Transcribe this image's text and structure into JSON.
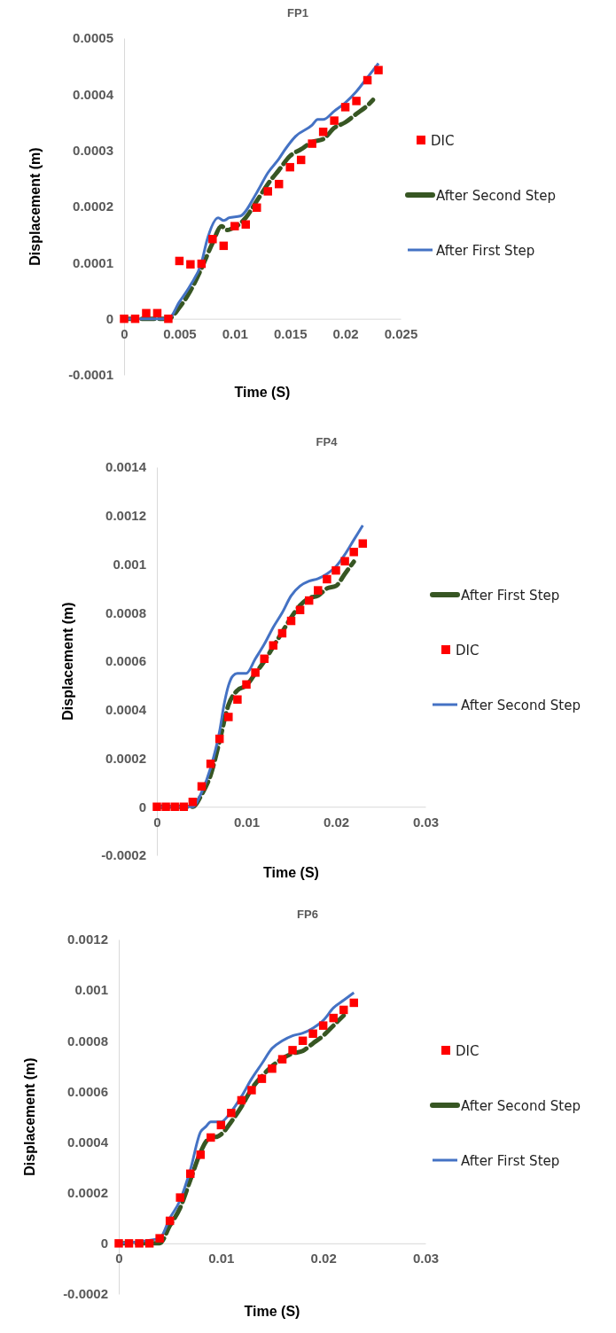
{
  "chart_data": [
    {
      "type": "line",
      "title": "FP1",
      "xlabel": "Time (S)",
      "ylabel": "Displacement (m)",
      "xlim": [
        0,
        0.025
      ],
      "xticks": [
        0,
        0.005,
        0.01,
        0.015,
        0.02,
        0.025
      ],
      "ylim": [
        -0.0001,
        0.0005
      ],
      "yticks": [
        -0.0001,
        0,
        0.0001,
        0.0002,
        0.0003,
        0.0004,
        0.0005
      ],
      "legend": "right",
      "grid": false,
      "series": [
        {
          "name": "DIC",
          "type": "scatter",
          "marker": "square",
          "color": "#ff0000",
          "x": [
            0,
            0.001,
            0.002,
            0.003,
            0.004,
            0.005,
            0.006,
            0.007,
            0.008,
            0.009,
            0.01,
            0.011,
            0.012,
            0.013,
            0.014,
            0.015,
            0.016,
            0.017,
            0.018,
            0.019,
            0.02,
            0.021,
            0.022,
            0.023
          ],
          "values": [
            0,
            0,
            1e-05,
            1e-05,
            0,
            0.000103,
            9.7e-05,
            9.8e-05,
            0.000142,
            0.00013,
            0.000165,
            0.000168,
            0.000198,
            0.000227,
            0.00024,
            0.00027,
            0.000283,
            0.000312,
            0.000333,
            0.000353,
            0.000377,
            0.000388,
            0.000425,
            0.000443
          ]
        },
        {
          "name": "After Second Step",
          "type": "line",
          "line_style": "dashed",
          "color": "#375623",
          "x": [
            0,
            0.004,
            0.005,
            0.006,
            0.007,
            0.008,
            0.0088,
            0.0093,
            0.01,
            0.011,
            0.012,
            0.013,
            0.014,
            0.015,
            0.016,
            0.017,
            0.018,
            0.019,
            0.02,
            0.021,
            0.022,
            0.0225
          ],
          "values": [
            0,
            0,
            2e-05,
            5e-05,
            9e-05,
            0.000135,
            0.000165,
            0.000158,
            0.000163,
            0.00018,
            0.00021,
            0.00024,
            0.000265,
            0.00029,
            0.000302,
            0.000315,
            0.00032,
            0.00034,
            0.00035,
            0.000365,
            0.00038,
            0.00039
          ]
        },
        {
          "name": "After First Step",
          "type": "line",
          "line_style": "solid",
          "color": "#4472c4",
          "x": [
            0,
            0.004,
            0.005,
            0.006,
            0.007,
            0.0075,
            0.0085,
            0.009,
            0.0095,
            0.0105,
            0.012,
            0.013,
            0.014,
            0.0145,
            0.0155,
            0.017,
            0.0175,
            0.018,
            0.019,
            0.02,
            0.021,
            0.022,
            0.023
          ],
          "values": [
            0,
            0,
            3e-05,
            6e-05,
            0.0001,
            0.00014,
            0.00018,
            0.000175,
            0.00018,
            0.000183,
            0.000225,
            0.00026,
            0.000285,
            0.0003,
            0.000325,
            0.000345,
            0.000355,
            0.000355,
            0.00037,
            0.000385,
            0.000405,
            0.00043,
            0.000455
          ]
        }
      ]
    },
    {
      "type": "line",
      "title": "FP4",
      "xlabel": "Time (S)",
      "ylabel": "Displacement (m)",
      "xlim": [
        0,
        0.03
      ],
      "xticks": [
        0,
        0.01,
        0.02,
        0.03
      ],
      "ylim": [
        -0.0002,
        0.0014
      ],
      "yticks": [
        -0.0002,
        0,
        0.0002,
        0.0004,
        0.0006,
        0.0008,
        0.001,
        0.0012,
        0.0014
      ],
      "legend": "right",
      "grid": false,
      "series": [
        {
          "name": "After First Step",
          "type": "line",
          "line_style": "dashed",
          "color": "#375623",
          "x": [
            0,
            0.004,
            0.005,
            0.006,
            0.007,
            0.008,
            0.009,
            0.01,
            0.011,
            0.012,
            0.013,
            0.014,
            0.015,
            0.016,
            0.017,
            0.018,
            0.019,
            0.02,
            0.021,
            0.022
          ],
          "values": [
            0,
            0,
            5e-05,
            0.00013,
            0.00027,
            0.00042,
            0.00048,
            0.0005,
            0.00055,
            0.0006,
            0.00066,
            0.00072,
            0.00078,
            0.00083,
            0.00086,
            0.00087,
            0.0009,
            0.00091,
            0.00096,
            0.00101
          ]
        },
        {
          "name": "DIC",
          "type": "scatter",
          "marker": "square",
          "color": "#ff0000",
          "x": [
            0,
            0.001,
            0.002,
            0.003,
            0.004,
            0.005,
            0.006,
            0.007,
            0.008,
            0.009,
            0.01,
            0.011,
            0.012,
            0.013,
            0.014,
            0.015,
            0.016,
            0.017,
            0.018,
            0.019,
            0.02,
            0.021,
            0.022,
            0.023
          ],
          "values": [
            0,
            0,
            0,
            0,
            2e-05,
            8.4e-05,
            0.000177,
            0.00028,
            0.00037,
            0.000442,
            0.000504,
            0.000553,
            0.00061,
            0.000665,
            0.000715,
            0.000766,
            0.000811,
            0.00085,
            0.000892,
            0.000938,
            0.000974,
            0.001012,
            0.00105,
            0.001085
          ]
        },
        {
          "name": "After Second Step",
          "type": "line",
          "line_style": "solid",
          "color": "#4472c4",
          "x": [
            0,
            0.004,
            0.005,
            0.006,
            0.007,
            0.0075,
            0.008,
            0.0085,
            0.009,
            0.0095,
            0.01,
            0.011,
            0.012,
            0.013,
            0.014,
            0.015,
            0.016,
            0.017,
            0.018,
            0.019,
            0.02,
            0.021,
            0.022,
            0.023
          ],
          "values": [
            0,
            0,
            6e-05,
            0.00016,
            0.00031,
            0.00042,
            0.0005,
            0.00054,
            0.00055,
            0.00055,
            0.00055,
            0.00061,
            0.00067,
            0.00074,
            0.0008,
            0.00087,
            0.00091,
            0.00093,
            0.00094,
            0.00096,
            0.00099,
            0.00104,
            0.0011,
            0.00116
          ]
        }
      ]
    },
    {
      "type": "line",
      "title": "FP6",
      "xlabel": "Time (S)",
      "ylabel": "Displacement (m)",
      "xlim": [
        0,
        0.03
      ],
      "xticks": [
        0,
        0.01,
        0.02,
        0.03
      ],
      "ylim": [
        -0.0002,
        0.0012
      ],
      "yticks": [
        -0.0002,
        0,
        0.0002,
        0.0004,
        0.0006,
        0.0008,
        0.001,
        0.0012
      ],
      "legend": "right",
      "grid": false,
      "series": [
        {
          "name": "DIC",
          "type": "scatter",
          "marker": "square",
          "color": "#ff0000",
          "x": [
            0,
            0.001,
            0.002,
            0.003,
            0.004,
            0.005,
            0.006,
            0.007,
            0.008,
            0.009,
            0.01,
            0.011,
            0.012,
            0.013,
            0.014,
            0.015,
            0.016,
            0.017,
            0.018,
            0.019,
            0.02,
            0.021,
            0.022,
            0.023
          ],
          "values": [
            0,
            0,
            0,
            0,
            2e-05,
            8.9e-05,
            0.000181,
            0.000275,
            0.00035,
            0.000418,
            0.000467,
            0.000515,
            0.000565,
            0.000605,
            0.00065,
            0.00069,
            0.000727,
            0.000763,
            0.0008,
            0.000828,
            0.00086,
            0.00089,
            0.000922,
            0.00095
          ]
        },
        {
          "name": "After Second Step",
          "type": "line",
          "line_style": "dashed",
          "color": "#375623",
          "x": [
            0,
            0.004,
            0.005,
            0.006,
            0.007,
            0.008,
            0.0085,
            0.009,
            0.0095,
            0.01,
            0.011,
            0.012,
            0.013,
            0.014,
            0.015,
            0.016,
            0.017,
            0.018,
            0.019,
            0.02,
            0.021,
            0.022
          ],
          "values": [
            0,
            0,
            7e-05,
            0.00014,
            0.00025,
            0.00036,
            0.0004,
            0.00042,
            0.00042,
            0.00043,
            0.00048,
            0.00054,
            0.00061,
            0.00066,
            0.0007,
            0.00073,
            0.00075,
            0.00076,
            0.00079,
            0.00082,
            0.00086,
            0.0009
          ]
        },
        {
          "name": "After First Step",
          "type": "line",
          "line_style": "solid",
          "color": "#4472c4",
          "x": [
            0,
            0.004,
            0.005,
            0.006,
            0.007,
            0.008,
            0.0085,
            0.009,
            0.0095,
            0.01,
            0.011,
            0.012,
            0.013,
            0.014,
            0.015,
            0.016,
            0.017,
            0.018,
            0.019,
            0.02,
            0.021,
            0.022,
            0.023
          ],
          "values": [
            0,
            2e-05,
            0.0001,
            0.00017,
            0.00029,
            0.00044,
            0.00046,
            0.00048,
            0.00048,
            0.00048,
            0.00052,
            0.00058,
            0.00065,
            0.00071,
            0.00077,
            0.0008,
            0.00082,
            0.00083,
            0.00085,
            0.00088,
            0.00093,
            0.00096,
            0.00099
          ]
        }
      ]
    }
  ]
}
